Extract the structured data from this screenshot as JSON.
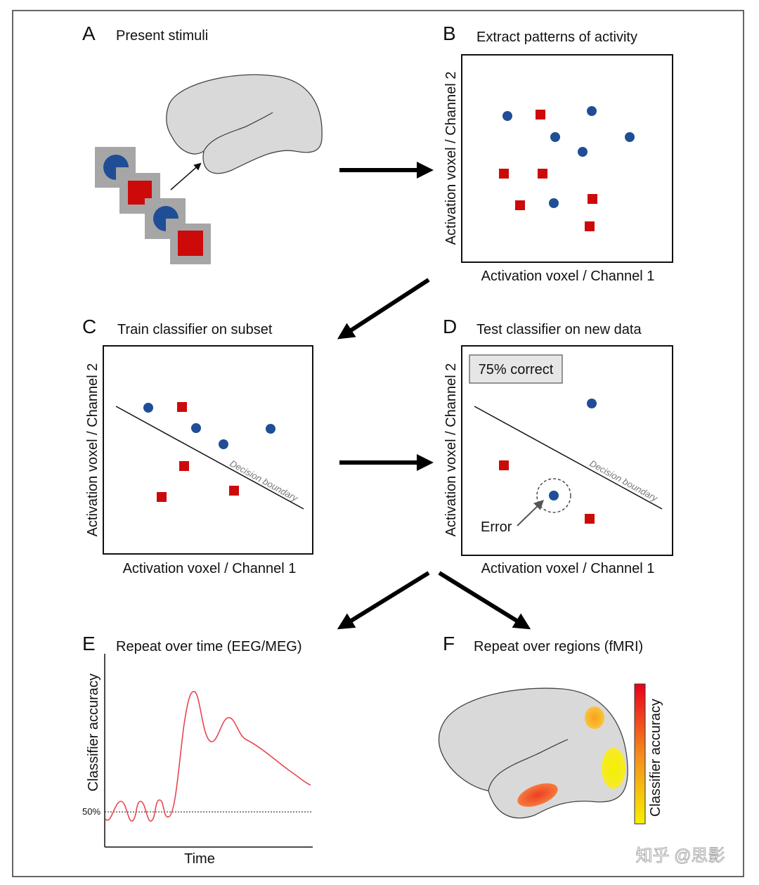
{
  "colors": {
    "class_a": "#1f4e96",
    "class_b": "#cc0a0a",
    "stimulus_bg": "#a6a6a6",
    "brain": "#d9d9d9",
    "curve": "#e8454f"
  },
  "panels": {
    "A": {
      "letter": "A",
      "title": "Present stimuli"
    },
    "B": {
      "letter": "B",
      "title": "Extract patterns of activity",
      "xlabel": "Activation voxel / Channel 1",
      "ylabel": "Activation voxel / Channel 2",
      "circles": [
        [
          722,
          165
        ],
        [
          842,
          158
        ],
        [
          790,
          195
        ],
        [
          896,
          195
        ],
        [
          829,
          216
        ],
        [
          788,
          289
        ]
      ],
      "squares": [
        [
          769,
          163
        ],
        [
          717,
          247
        ],
        [
          772,
          247
        ],
        [
          740,
          292
        ],
        [
          843,
          283
        ],
        [
          839,
          322
        ]
      ]
    },
    "C": {
      "letter": "C",
      "title": "Train classifier on subset",
      "xlabel": "Activation voxel / Channel 1",
      "ylabel": "Activation voxel / Channel 2",
      "boundary_label": "Decision boundary",
      "circles": [
        [
          211,
          580
        ],
        [
          279,
          609
        ],
        [
          318,
          632
        ],
        [
          385,
          610
        ]
      ],
      "squares": [
        [
          259,
          579
        ],
        [
          262,
          663
        ],
        [
          230,
          707
        ],
        [
          333,
          698
        ]
      ]
    },
    "D": {
      "letter": "D",
      "title": "Test classifier on new data",
      "xlabel": "Activation voxel / Channel 1",
      "ylabel": "Activation voxel / Channel 2",
      "boundary_label": "Decision boundary",
      "accuracy_label": "75% correct",
      "error_label": "Error",
      "circles": [
        [
          842,
          574
        ],
        [
          788,
          705
        ]
      ],
      "squares": [
        [
          717,
          662
        ],
        [
          839,
          738
        ]
      ]
    },
    "E": {
      "letter": "E",
      "title": "Repeat over time (EEG/MEG)",
      "ylabel": "Classifier accuracy",
      "xlabel": "Time",
      "chance_label": "50%"
    },
    "F": {
      "letter": "F",
      "title": "Repeat over regions (fMRI)",
      "colorbar_label": "Classifier accuracy"
    }
  },
  "watermark": "知乎 @思影"
}
